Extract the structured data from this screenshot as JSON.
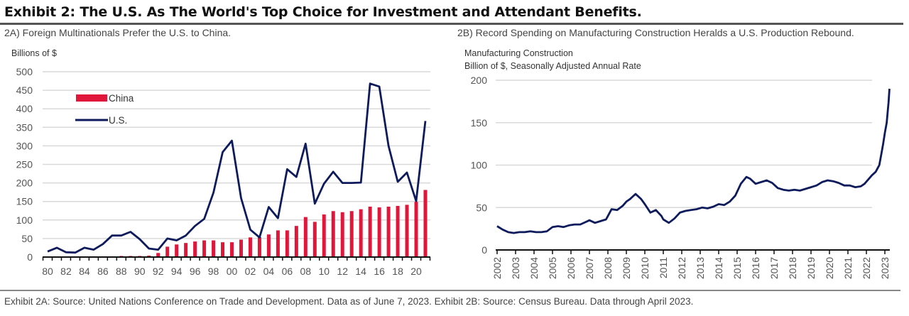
{
  "title": "Exhibit 2: The U.S. As The World's Top Choice for Investment and Attendant Benefits.",
  "source": "Exhibit 2A: Source: United Nations Conference on Trade and Development. Data as of June 7, 2023. Exhibit 2B: Source: Census Bureau. Data through April 2023.",
  "colors": {
    "navy": "#0d1b5c",
    "red": "#e0163a",
    "grid": "#d9d9d9",
    "axis": "#111111"
  },
  "chart_data": [
    {
      "type": "bar",
      "title": "2A) Foreign Multinationals Prefer the U.S. to China.",
      "ylabel": "Billions of $",
      "xlabel": "",
      "ylim": [
        0,
        500
      ],
      "yticks": [
        0,
        50,
        100,
        150,
        200,
        250,
        300,
        350,
        400,
        450,
        500
      ],
      "grid": true,
      "legend_position": "top-left",
      "x": [
        1980,
        1981,
        1982,
        1983,
        1984,
        1985,
        1986,
        1987,
        1988,
        1989,
        1990,
        1991,
        1992,
        1993,
        1994,
        1995,
        1996,
        1997,
        1998,
        1999,
        2000,
        2001,
        2002,
        2003,
        2004,
        2005,
        2006,
        2007,
        2008,
        2009,
        2010,
        2011,
        2012,
        2013,
        2014,
        2015,
        2016,
        2017,
        2018,
        2019,
        2020,
        2021
      ],
      "xtick_labels": [
        "80",
        "82",
        "84",
        "86",
        "88",
        "90",
        "92",
        "94",
        "96",
        "98",
        "00",
        "02",
        "04",
        "06",
        "08",
        "10",
        "12",
        "14",
        "16",
        "18",
        "20"
      ],
      "series": [
        {
          "name": "China",
          "kind": "bar",
          "color": "#e0163a",
          "values": [
            0,
            0,
            0,
            0,
            1,
            2,
            2,
            2,
            3,
            3,
            3,
            4,
            11,
            28,
            34,
            38,
            42,
            45,
            45,
            40,
            40,
            47,
            53,
            54,
            61,
            72,
            72,
            84,
            108,
            95,
            115,
            124,
            121,
            124,
            129,
            136,
            134,
            136,
            138,
            141,
            149,
            181
          ]
        },
        {
          "name": "U.S.",
          "kind": "line",
          "color": "#0d1b5c",
          "values": [
            15,
            25,
            13,
            12,
            25,
            20,
            35,
            58,
            58,
            68,
            48,
            23,
            20,
            50,
            45,
            58,
            84,
            103,
            174,
            283,
            314,
            159,
            74,
            53,
            135,
            105,
            237,
            216,
            306,
            144,
            198,
            230,
            200,
            200,
            201,
            468,
            460,
            300,
            203,
            228,
            151,
            367
          ]
        }
      ]
    },
    {
      "type": "line",
      "title": "2B) Record Spending on Manufacturing Construction Heralds a U.S. Production Rebound.",
      "ylabel_line1": "Manufacturing Construction",
      "ylabel_line2": "Billion of $, Seasonally Adjusted Annual Rate",
      "xlabel": "",
      "ylim": [
        0,
        200
      ],
      "yticks": [
        0,
        50,
        100,
        150,
        200
      ],
      "grid": true,
      "xtick_labels": [
        "2002",
        "2003",
        "2004",
        "2005",
        "2006",
        "2007",
        "2008",
        "2009",
        "2010",
        "2011",
        "2012",
        "2013",
        "2014",
        "2015",
        "2016",
        "2017",
        "2018",
        "2019",
        "2020",
        "2021",
        "2022",
        "2023"
      ],
      "series": [
        {
          "name": "Manufacturing Construction",
          "color": "#0d1b5c",
          "x": [
            2002.0,
            2002.3,
            2002.6,
            2002.9,
            2003.2,
            2003.5,
            2003.8,
            2004.1,
            2004.4,
            2004.7,
            2005.0,
            2005.3,
            2005.6,
            2005.9,
            2006.2,
            2006.5,
            2006.8,
            2007.0,
            2007.3,
            2007.6,
            2007.9,
            2008.0,
            2008.2,
            2008.5,
            2008.8,
            2009.0,
            2009.2,
            2009.5,
            2009.8,
            2010.0,
            2010.3,
            2010.6,
            2010.9,
            2011.0,
            2011.3,
            2011.6,
            2011.9,
            2012.2,
            2012.5,
            2012.8,
            2013.1,
            2013.4,
            2013.7,
            2014.0,
            2014.3,
            2014.6,
            2014.9,
            2015.2,
            2015.5,
            2015.7,
            2016.0,
            2016.3,
            2016.6,
            2016.9,
            2017.2,
            2017.5,
            2017.8,
            2018.1,
            2018.4,
            2018.7,
            2019.0,
            2019.3,
            2019.6,
            2019.9,
            2020.2,
            2020.5,
            2020.8,
            2021.1,
            2021.4,
            2021.7,
            2021.9,
            2022.1,
            2022.3,
            2022.5,
            2022.6,
            2022.7,
            2022.8,
            2022.9,
            2023.0,
            2023.1,
            2023.2,
            2023.25
          ],
          "values": [
            28,
            24,
            21,
            20,
            21,
            21,
            22,
            21,
            21,
            22,
            27,
            28,
            27,
            29,
            30,
            30,
            33,
            35,
            32,
            34,
            36,
            40,
            48,
            47,
            52,
            57,
            60,
            66,
            60,
            54,
            44,
            47,
            40,
            36,
            32,
            37,
            44,
            46,
            47,
            48,
            50,
            49,
            51,
            54,
            53,
            57,
            64,
            78,
            86,
            84,
            78,
            80,
            82,
            79,
            73,
            71,
            70,
            71,
            70,
            72,
            74,
            76,
            80,
            82,
            81,
            79,
            76,
            76,
            74,
            75,
            78,
            83,
            88,
            92,
            96,
            100,
            112,
            124,
            138,
            150,
            174,
            190
          ]
        }
      ]
    }
  ]
}
